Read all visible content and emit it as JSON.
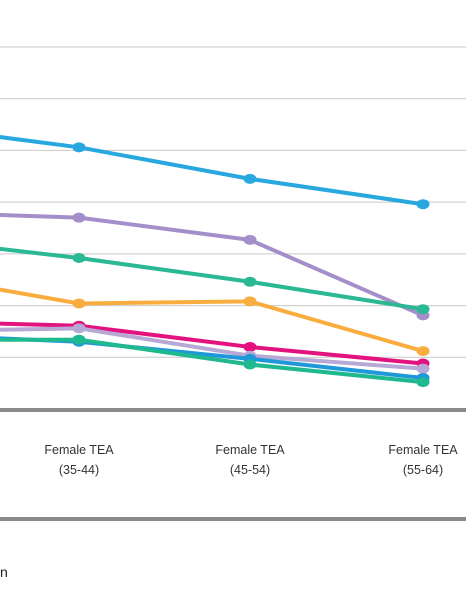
{
  "chart_data": {
    "type": "line",
    "categories": [
      {
        "line1": "",
        "line2": ""
      },
      {
        "line1": "Female TEA",
        "line2": "(35-44)"
      },
      {
        "line1": "Female TEA",
        "line2": "(45-54)"
      },
      {
        "line1": "Female TEA",
        "line2": "(55-64)"
      }
    ],
    "ylim": [
      0,
      700
    ],
    "gridlines": [
      100,
      200,
      300,
      400,
      500,
      600,
      700
    ],
    "grid": true,
    "series": [
      {
        "color": "#29a8e0",
        "values": [
          549,
          506,
          445,
          396
        ]
      },
      {
        "color": "#a58fcb",
        "values": [
          381,
          370,
          327,
          181
        ]
      },
      {
        "color": "#2bb894",
        "values": [
          330,
          292,
          246,
          193
        ]
      },
      {
        "color": "#f9ad3e",
        "values": [
          262,
          204,
          208,
          112
        ]
      },
      {
        "color": "#e2137f",
        "values": [
          170,
          161,
          120,
          88
        ]
      },
      {
        "color": "#b7a9d6",
        "values": [
          150,
          156,
          103,
          78
        ]
      },
      {
        "color": "#1e98d8",
        "values": [
          144,
          130,
          97,
          60
        ]
      },
      {
        "color": "#20b88e",
        "values": [
          134,
          134,
          86,
          52
        ]
      }
    ]
  },
  "footer": {
    "text": "n"
  }
}
